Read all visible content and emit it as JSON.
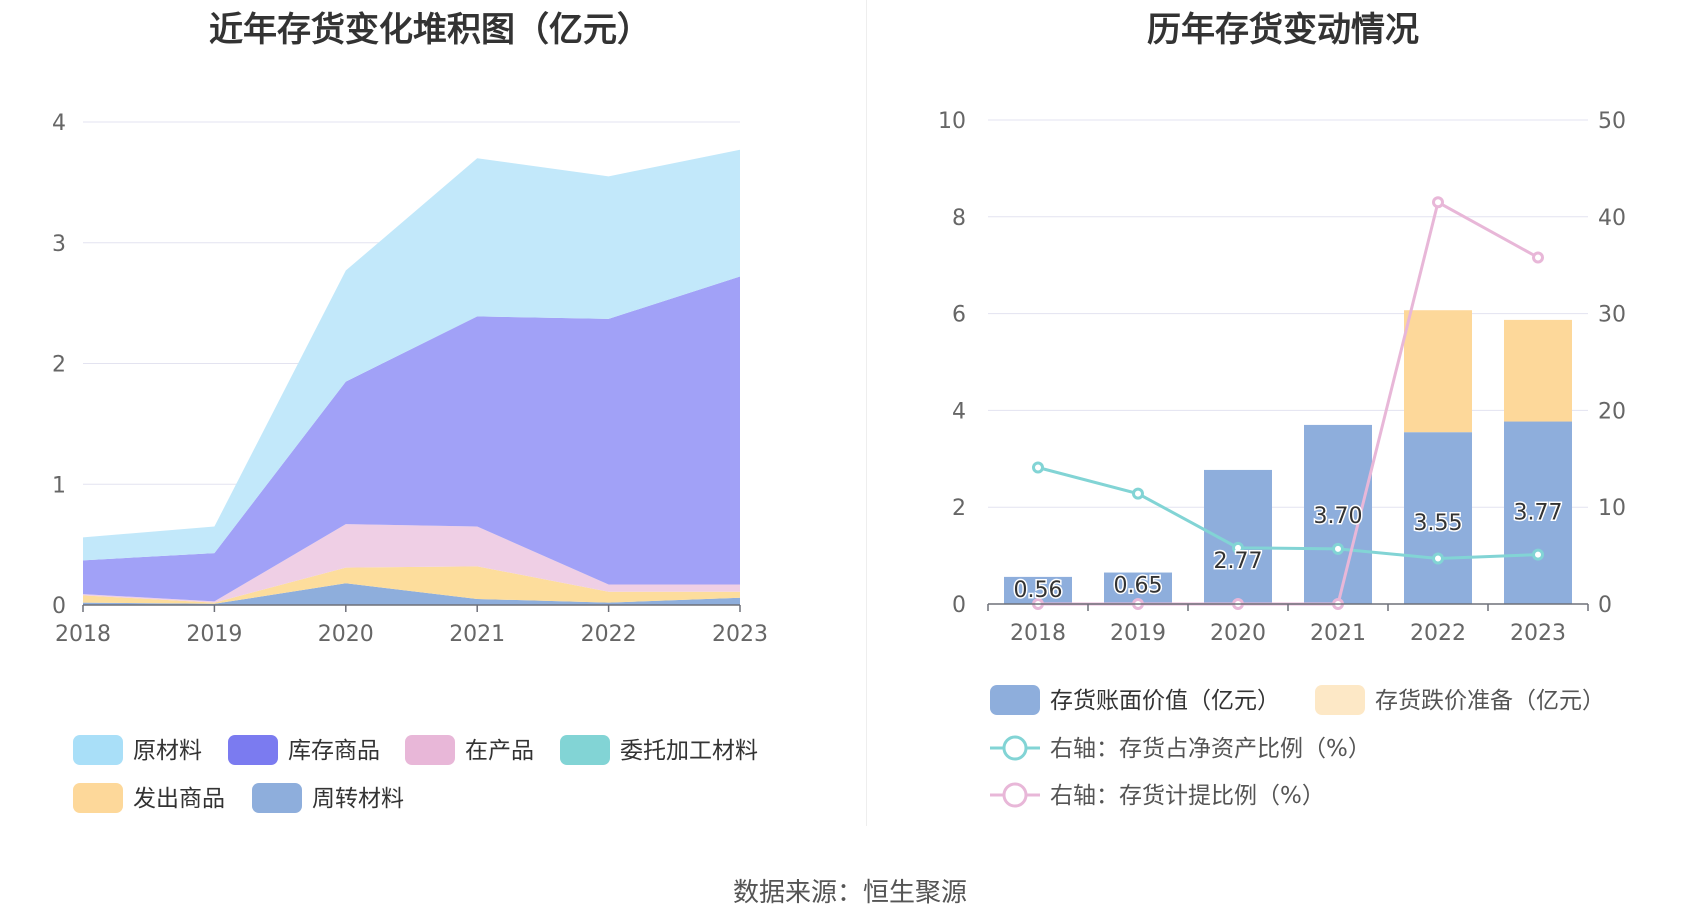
{
  "source_label": "数据来源：恒生聚源",
  "chart_data": [
    {
      "type": "area",
      "stacked": true,
      "title": "近年存货变化堆积图（亿元）",
      "x": [
        "2018",
        "2019",
        "2020",
        "2021",
        "2022",
        "2023"
      ],
      "ylim": [
        0,
        4
      ],
      "yticks": [
        "0",
        "1",
        "2",
        "3",
        "4"
      ],
      "grid": true,
      "legend_position": "bottom",
      "series": [
        {
          "name": "周转材料",
          "color": "#8eaedc",
          "values": [
            0.02,
            0.01,
            0.18,
            0.05,
            0.02,
            0.06
          ]
        },
        {
          "name": "发出商品",
          "color": "#fddd9c",
          "values": [
            0.06,
            0.01,
            0.13,
            0.27,
            0.09,
            0.05
          ]
        },
        {
          "name": "委托加工材料",
          "color": "#82d4d5",
          "values": [
            0.0,
            0.0,
            0.0,
            0.0,
            0.0,
            0.0
          ]
        },
        {
          "name": "在产品",
          "color": "#efcfe5",
          "values": [
            0.01,
            0.01,
            0.36,
            0.33,
            0.06,
            0.06
          ]
        },
        {
          "name": "库存商品",
          "color": "#a1a1f7",
          "values": [
            0.28,
            0.4,
            1.18,
            1.74,
            2.2,
            2.55
          ]
        },
        {
          "name": "原材料",
          "color": "#c2e8fa",
          "values": [
            0.19,
            0.22,
            0.92,
            1.31,
            1.18,
            1.05
          ]
        }
      ],
      "legend_order": [
        "原材料",
        "库存商品",
        "在产品",
        "委托加工材料",
        "发出商品",
        "周转材料"
      ],
      "legend_colors": {
        "原材料": "#a9dff8",
        "库存商品": "#7b7bf0",
        "在产品": "#e8b7d8",
        "委托加工材料": "#82d4d5",
        "发出商品": "#fdd89a",
        "周转材料": "#8eaedc"
      }
    },
    {
      "type": "bar",
      "stacked": true,
      "title": "历年存货变动情况",
      "categories": [
        "2018",
        "2019",
        "2020",
        "2021",
        "2022",
        "2023"
      ],
      "ylim": [
        0,
        10
      ],
      "yticks": [
        "0",
        "2",
        "4",
        "6",
        "8",
        "10"
      ],
      "y2lim": [
        0,
        50
      ],
      "y2ticks": [
        "0",
        "10",
        "20",
        "30",
        "40",
        "50"
      ],
      "grid": true,
      "legend_position": "bottom",
      "series": [
        {
          "name": "存货账面价值（亿元）",
          "axis": "left",
          "kind": "bar",
          "color": "#8eaedc",
          "values": [
            0.56,
            0.65,
            2.77,
            3.7,
            3.55,
            3.77
          ],
          "labels": [
            "0.56",
            "0.65",
            "2.77",
            "3.70",
            "3.55",
            "3.77"
          ]
        },
        {
          "name": "存货跌价准备（亿元）",
          "axis": "left",
          "kind": "bar",
          "color": "#fdd89a",
          "legend_color": "#fde8c6",
          "values": [
            0,
            0,
            0,
            0,
            2.52,
            2.1
          ]
        },
        {
          "name": "右轴：存货占净资产比例（%）",
          "axis": "right",
          "kind": "line",
          "color": "#82d4d5",
          "values": [
            14.1,
            11.4,
            5.8,
            5.7,
            4.7,
            5.1
          ]
        },
        {
          "name": "右轴：存货计提比例（%）",
          "axis": "right",
          "kind": "line",
          "color": "#e8b7d8",
          "values": [
            0,
            0,
            0,
            0,
            41.5,
            35.8
          ]
        }
      ]
    }
  ]
}
